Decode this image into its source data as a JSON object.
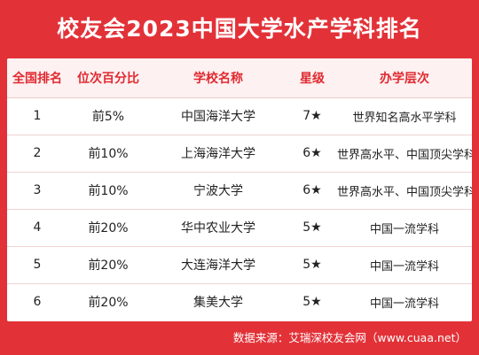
{
  "title": "校友会2023中国大学水产学科排名",
  "table": {
    "headers": [
      "全国排名",
      "位次百分比",
      "学校名称",
      "星级",
      "办学层次"
    ],
    "rows": [
      {
        "rank": "1",
        "percentile": "前5%",
        "school": "中国海洋大学",
        "stars": "7★",
        "level": "世界知名高水平学科"
      },
      {
        "rank": "2",
        "percentile": "前10%",
        "school": "上海海洋大学",
        "stars": "6★",
        "level": "世界高水平、中国顶尖学科"
      },
      {
        "rank": "3",
        "percentile": "前10%",
        "school": "宁波大学",
        "stars": "6★",
        "level": "世界高水平、中国顶尖学科"
      },
      {
        "rank": "4",
        "percentile": "前20%",
        "school": "华中农业大学",
        "stars": "5★",
        "level": "中国一流学科"
      },
      {
        "rank": "5",
        "percentile": "前20%",
        "school": "大连海洋大学",
        "stars": "5★",
        "level": "中国一流学科"
      },
      {
        "rank": "6",
        "percentile": "前20%",
        "school": "集美大学",
        "stars": "5★",
        "level": "中国一流学科"
      }
    ]
  },
  "footer": "数据来源：艾瑞深校友会网（www.cuaa.net）",
  "colors": {
    "brand_red": "#e23238",
    "header_text": "#e02a30",
    "header_bg": "#fdf1f1"
  }
}
